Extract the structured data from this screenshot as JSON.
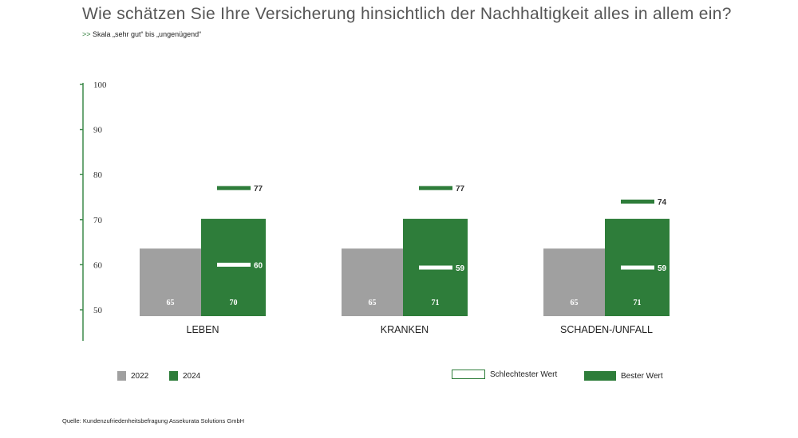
{
  "title": "Wie schätzen Sie Ihre Versicherung hinsichtlich der Nachhaltigkeit alles in allem ein?",
  "subtitle_prefix": ">>",
  "subtitle": "Skala „sehr gut“ bis „ungenügend“",
  "source": "Quelle: Kundenzufriedenheitsbefragung Assekurata Solutions GmbH",
  "colors": {
    "grey": "#a0a0a0",
    "green": "#2e7d3a",
    "axis": "#3d8a4a"
  },
  "chart_data": {
    "type": "bar",
    "title": "Wie schätzen Sie Ihre Versicherung hinsichtlich der Nachhaltigkeit alles in allem ein?",
    "categories": [
      "LEBEN",
      "KRANKEN",
      "SCHADEN-/UNFALL"
    ],
    "series": [
      {
        "name": "2022",
        "values": [
          65,
          65,
          65
        ]
      },
      {
        "name": "2024",
        "values": [
          70,
          71,
          71
        ]
      }
    ],
    "best": {
      "name": "Bester Wert",
      "values": [
        77,
        77,
        74
      ]
    },
    "worst": {
      "name": "Schlechtester Wert",
      "values": [
        60,
        59,
        59
      ]
    },
    "yticks": [
      50,
      60,
      70,
      80,
      90,
      100
    ],
    "ylim": [
      50,
      100
    ],
    "legend": "bottom"
  },
  "legend": {
    "y2022": "2022",
    "y2024": "2024",
    "worst": "Schlechtester Wert",
    "best": "Bester Wert"
  }
}
